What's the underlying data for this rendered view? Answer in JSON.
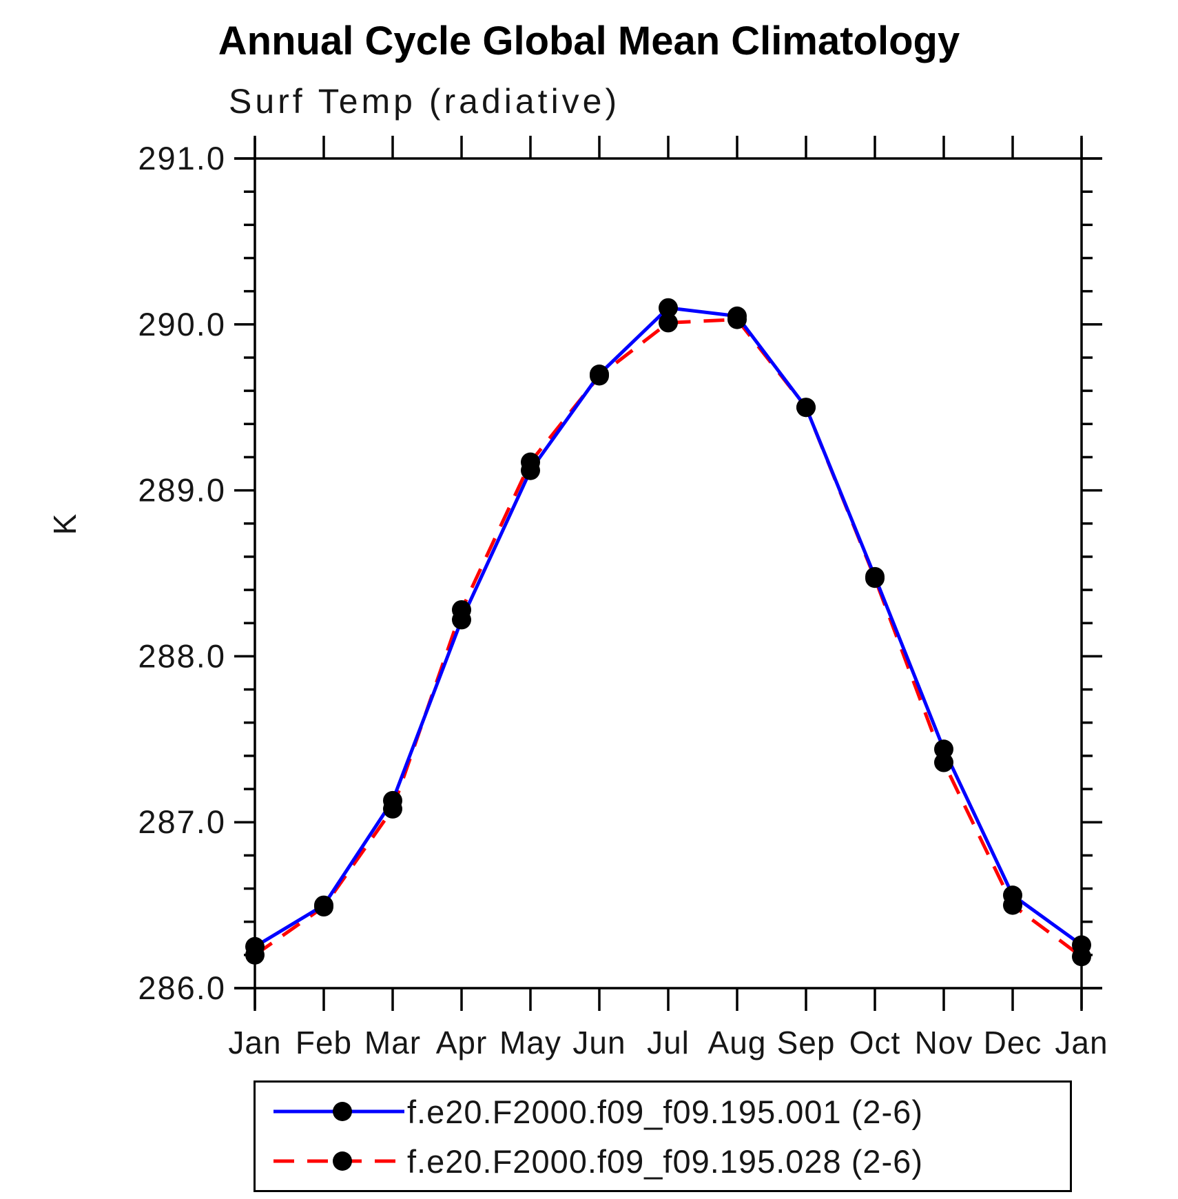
{
  "chart_data": {
    "type": "line",
    "title": "Annual Cycle Global Mean Climatology",
    "subtitle": "Surf Temp (radiative)",
    "ylabel": "K",
    "xlabel": "",
    "categories": [
      "Jan",
      "Feb",
      "Mar",
      "Apr",
      "May",
      "Jun",
      "Jul",
      "Aug",
      "Sep",
      "Oct",
      "Nov",
      "Dec",
      "Jan"
    ],
    "ylim": [
      286.0,
      291.0
    ],
    "ytick_labels": [
      "286.0",
      "287.0",
      "288.0",
      "289.0",
      "290.0",
      "291.0"
    ],
    "ytick_values": [
      286.0,
      287.0,
      288.0,
      289.0,
      290.0,
      291.0
    ],
    "y_minor_step": 0.2,
    "grid": "off",
    "legend_position": "bottom",
    "axis_color": "#000000",
    "marker_color": "#000000",
    "series": [
      {
        "name": "f.e20.F2000.f09_f09.195.001 (2-6)",
        "color": "#0000ff",
        "style": "solid",
        "values": [
          286.25,
          286.5,
          287.13,
          288.22,
          289.12,
          289.7,
          290.1,
          290.05,
          289.5,
          288.48,
          287.44,
          286.56,
          286.26
        ]
      },
      {
        "name": "f.e20.F2000.f09_f09.195.028 (2-6)",
        "color": "#ff0000",
        "style": "dashed",
        "values": [
          286.2,
          286.49,
          287.08,
          288.28,
          289.17,
          289.69,
          290.01,
          290.03,
          289.5,
          288.47,
          287.36,
          286.5,
          286.19
        ]
      }
    ]
  }
}
